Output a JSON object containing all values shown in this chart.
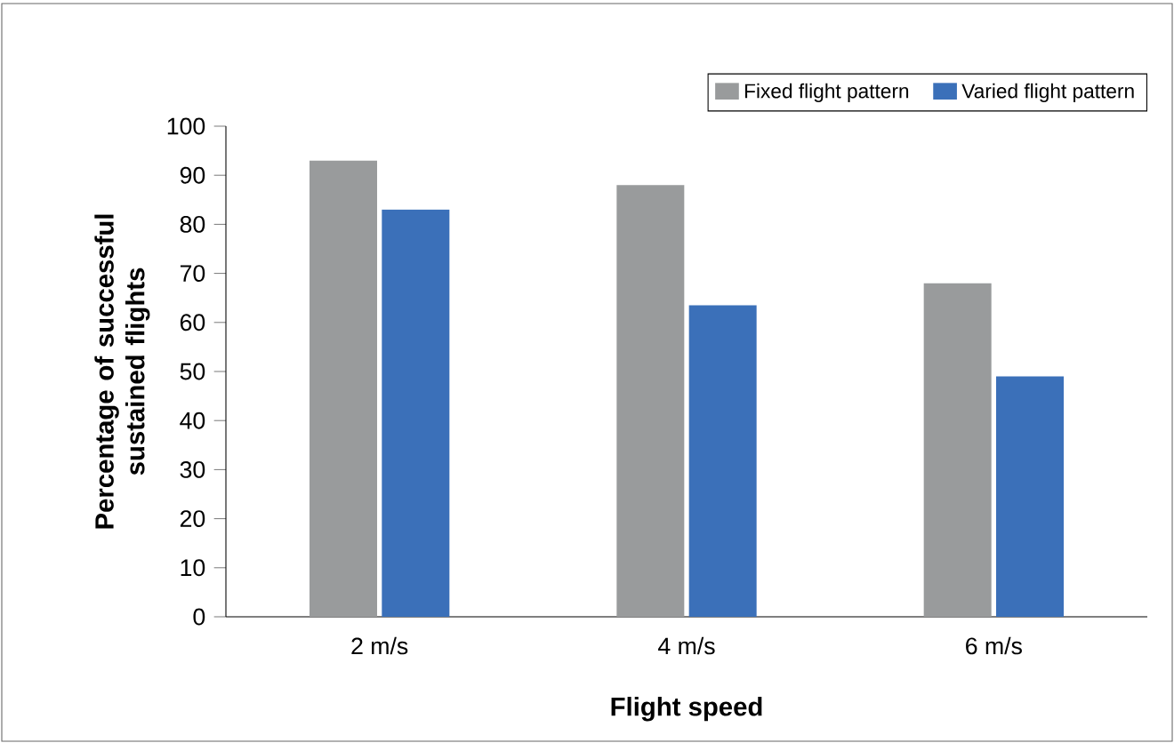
{
  "chart_data": {
    "type": "bar",
    "xlabel": "Flight speed",
    "ylabel": "Percentage of successful sustained flights",
    "categories": [
      "2 m/s",
      "4 m/s",
      "6 m/s"
    ],
    "series": [
      {
        "name": "Fixed flight pattern",
        "color": "#999b9c",
        "values": [
          93,
          88,
          68
        ]
      },
      {
        "name": "Varied flight pattern",
        "color": "#3b70b9",
        "values": [
          83,
          63.5,
          49
        ]
      }
    ],
    "ylim": [
      0,
      100
    ],
    "yticks": [
      0,
      10,
      20,
      30,
      40,
      50,
      60,
      70,
      80,
      90,
      100
    ],
    "legend": "top right",
    "grid": false
  }
}
